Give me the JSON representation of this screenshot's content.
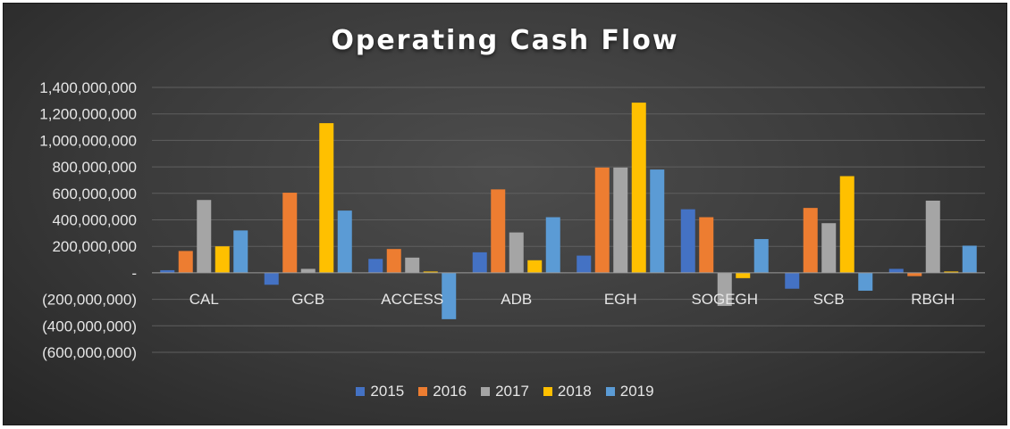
{
  "chart_data": {
    "type": "bar",
    "title": "Operating Cash Flow",
    "xlabel": "",
    "ylabel": "",
    "ylim": [
      -600000000,
      1400000000
    ],
    "yticks": [
      1400000000,
      1200000000,
      1000000000,
      800000000,
      600000000,
      400000000,
      200000000,
      0,
      -200000000,
      -400000000,
      -600000000
    ],
    "ytick_labels": [
      "1,400,000,000",
      "1,200,000,000",
      "1,000,000,000",
      "800,000,000",
      "600,000,000",
      "400,000,000",
      "200,000,000",
      "-",
      "(200,000,000)",
      "(400,000,000)",
      "(600,000,000)"
    ],
    "categories": [
      "CAL",
      "GCB",
      "ACCESS",
      "ADB",
      "EGH",
      "SOGEGH",
      "SCB",
      "RBGH"
    ],
    "series": [
      {
        "name": "2015",
        "color": "#4472c4",
        "values": [
          20000000,
          -90000000,
          105000000,
          155000000,
          130000000,
          480000000,
          -120000000,
          30000000
        ]
      },
      {
        "name": "2016",
        "color": "#ed7d31",
        "values": [
          165000000,
          605000000,
          180000000,
          630000000,
          795000000,
          420000000,
          490000000,
          -25000000
        ]
      },
      {
        "name": "2017",
        "color": "#a5a5a5",
        "values": [
          550000000,
          30000000,
          115000000,
          305000000,
          795000000,
          -250000000,
          375000000,
          545000000
        ]
      },
      {
        "name": "2018",
        "color": "#ffc000",
        "values": [
          200000000,
          1130000000,
          10000000,
          95000000,
          1285000000,
          -40000000,
          730000000,
          10000000
        ]
      },
      {
        "name": "2019",
        "color": "#5b9bd5",
        "values": [
          320000000,
          470000000,
          -350000000,
          420000000,
          780000000,
          255000000,
          -135000000,
          205000000
        ]
      }
    ],
    "legend_position": "bottom",
    "grid": true
  }
}
